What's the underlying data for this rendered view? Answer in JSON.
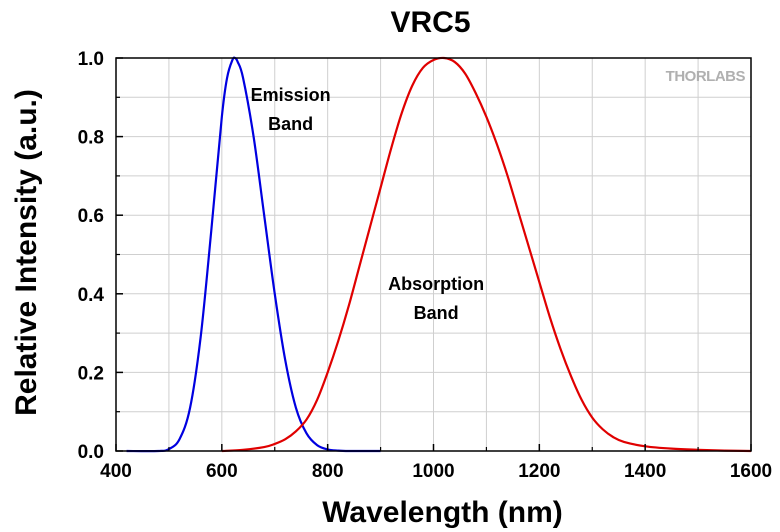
{
  "chart_data": {
    "type": "line",
    "title": "VRC5",
    "xlabel": "Wavelength (nm)",
    "ylabel": "Relative Intensity (a.u.)",
    "xlim": [
      400,
      1600
    ],
    "ylim": [
      0,
      1.0
    ],
    "xticks": [
      400,
      600,
      800,
      1000,
      1200,
      1400,
      1600
    ],
    "xtick_labels": [
      "400",
      "600",
      "800",
      "1000",
      "1200",
      "1400",
      "1600"
    ],
    "yticks": [
      0.0,
      0.2,
      0.4,
      0.6,
      0.8,
      1.0
    ],
    "ytick_labels": [
      "0.0",
      "0.2",
      "0.4",
      "0.6",
      "0.8",
      "1.0"
    ],
    "grid": true,
    "series": [
      {
        "color": "#0000e0",
        "x": [
          420,
          480,
          500,
          520,
          540,
          560,
          580,
          600,
          610,
          620,
          625,
          630,
          640,
          660,
          680,
          700,
          720,
          740,
          760,
          780,
          800,
          820,
          840,
          880,
          900
        ],
        "y": [
          0.0,
          0.0,
          0.005,
          0.03,
          0.11,
          0.29,
          0.56,
          0.85,
          0.95,
          0.995,
          1.0,
          0.99,
          0.95,
          0.8,
          0.6,
          0.4,
          0.23,
          0.11,
          0.045,
          0.015,
          0.004,
          0.001,
          0.0,
          0.0,
          0.0
        ]
      },
      {
        "color": "#e00000",
        "x": [
          600,
          640,
          680,
          700,
          720,
          740,
          760,
          780,
          800,
          820,
          840,
          860,
          880,
          900,
          920,
          940,
          960,
          980,
          1000,
          1020,
          1040,
          1060,
          1080,
          1100,
          1120,
          1140,
          1160,
          1180,
          1200,
          1220,
          1240,
          1260,
          1280,
          1300,
          1320,
          1340,
          1360,
          1400,
          1450,
          1500,
          1550,
          1600
        ],
        "y": [
          0.0,
          0.003,
          0.01,
          0.018,
          0.03,
          0.05,
          0.08,
          0.13,
          0.2,
          0.28,
          0.37,
          0.47,
          0.57,
          0.67,
          0.77,
          0.86,
          0.93,
          0.975,
          0.995,
          1.0,
          0.99,
          0.96,
          0.91,
          0.85,
          0.78,
          0.7,
          0.61,
          0.52,
          0.43,
          0.34,
          0.26,
          0.19,
          0.13,
          0.085,
          0.055,
          0.035,
          0.023,
          0.012,
          0.006,
          0.003,
          0.001,
          0.0
        ]
      }
    ],
    "annotations": [
      {
        "lines": [
          "Emission",
          "Band"
        ],
        "x": 730,
        "y": 0.89
      },
      {
        "lines": [
          "Absorption",
          "Band"
        ],
        "x": 1005,
        "y": 0.41
      }
    ]
  },
  "watermark": {
    "text": "THORLABS"
  }
}
